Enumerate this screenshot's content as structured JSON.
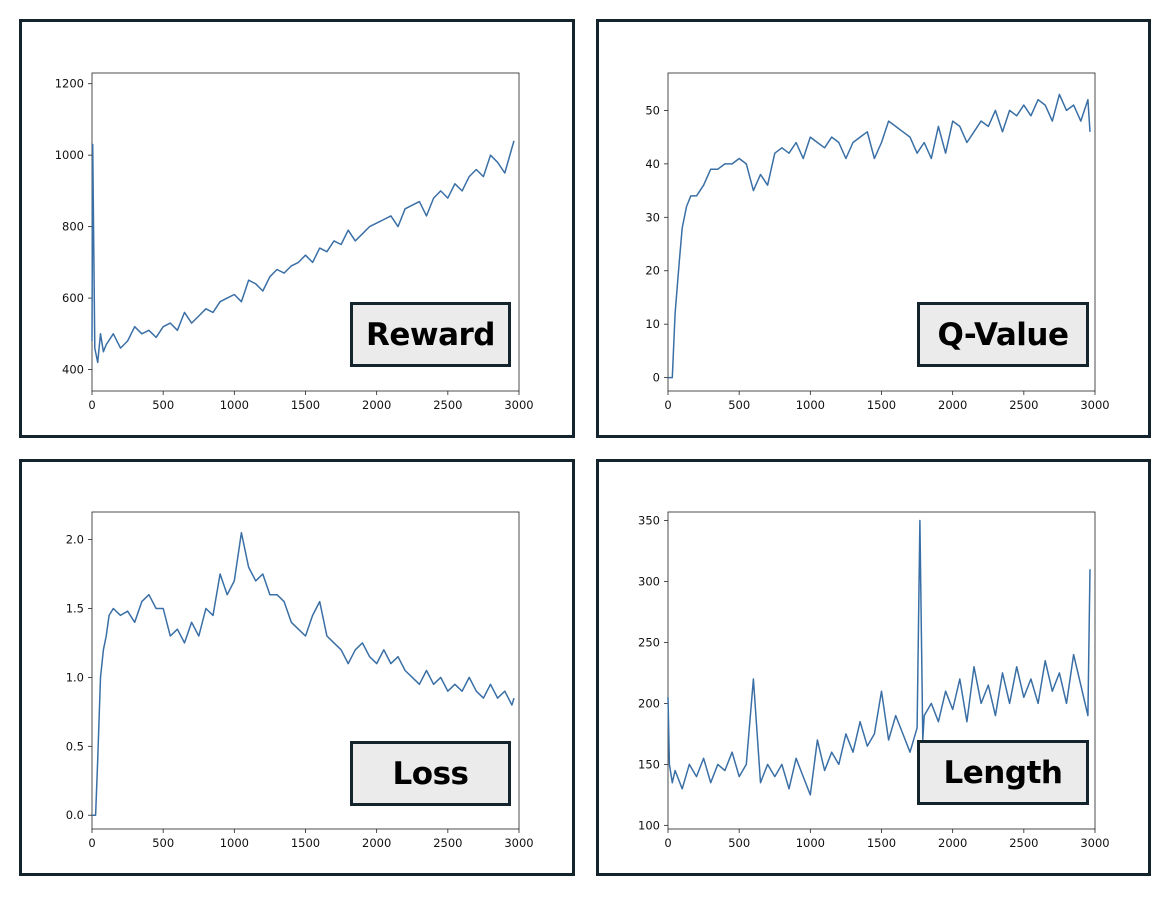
{
  "chart_data": [
    {
      "type": "line",
      "title": "Reward",
      "xlim": [
        0,
        3000
      ],
      "ylim": [
        340,
        1230
      ],
      "xticks": [
        0,
        500,
        1000,
        1500,
        2000,
        2500,
        3000
      ],
      "yticks": [
        400,
        600,
        800,
        1000,
        1200
      ],
      "series": [
        {
          "name": "",
          "color": "#3a6fa6",
          "x": [
            0,
            5,
            20,
            40,
            60,
            80,
            100,
            150,
            200,
            250,
            300,
            350,
            400,
            450,
            500,
            550,
            600,
            650,
            700,
            750,
            800,
            850,
            900,
            950,
            1000,
            1050,
            1100,
            1150,
            1200,
            1250,
            1300,
            1350,
            1400,
            1450,
            1500,
            1550,
            1600,
            1650,
            1700,
            1750,
            1800,
            1850,
            1900,
            1950,
            2000,
            2050,
            2100,
            2150,
            2200,
            2250,
            2300,
            2350,
            2400,
            2450,
            2500,
            2550,
            2600,
            2650,
            2700,
            2750,
            2800,
            2850,
            2900,
            2950,
            2965
          ],
          "y": [
            480,
            1030,
            460,
            420,
            500,
            450,
            470,
            500,
            460,
            480,
            520,
            500,
            510,
            490,
            520,
            530,
            510,
            560,
            530,
            550,
            570,
            560,
            590,
            600,
            610,
            590,
            650,
            640,
            620,
            660,
            680,
            670,
            690,
            700,
            720,
            700,
            740,
            730,
            760,
            750,
            790,
            760,
            780,
            800,
            810,
            820,
            830,
            800,
            850,
            860,
            870,
            830,
            880,
            900,
            880,
            920,
            900,
            940,
            960,
            940,
            1000,
            980,
            950,
            1020,
            1040
          ]
        }
      ]
    },
    {
      "type": "line",
      "title": "Q-Value",
      "xlim": [
        0,
        3000
      ],
      "ylim": [
        -2.5,
        57
      ],
      "xticks": [
        0,
        500,
        1000,
        1500,
        2000,
        2500,
        3000
      ],
      "yticks": [
        0,
        10,
        20,
        30,
        40,
        50
      ],
      "series": [
        {
          "name": "",
          "color": "#3a6fa6",
          "x": [
            0,
            20,
            30,
            50,
            80,
            100,
            130,
            160,
            200,
            250,
            300,
            350,
            400,
            450,
            500,
            550,
            600,
            650,
            700,
            750,
            800,
            850,
            900,
            950,
            1000,
            1050,
            1100,
            1150,
            1200,
            1250,
            1300,
            1350,
            1400,
            1450,
            1500,
            1550,
            1600,
            1650,
            1700,
            1750,
            1800,
            1850,
            1900,
            1950,
            2000,
            2050,
            2100,
            2150,
            2200,
            2250,
            2300,
            2350,
            2400,
            2450,
            2500,
            2550,
            2600,
            2650,
            2700,
            2750,
            2800,
            2850,
            2900,
            2950,
            2965
          ],
          "y": [
            0,
            0,
            0,
            12,
            22,
            28,
            32,
            34,
            34,
            36,
            39,
            39,
            40,
            40,
            41,
            40,
            35,
            38,
            36,
            42,
            43,
            42,
            44,
            41,
            45,
            44,
            43,
            45,
            44,
            41,
            44,
            45,
            46,
            41,
            44,
            48,
            47,
            46,
            45,
            42,
            44,
            41,
            47,
            42,
            48,
            47,
            44,
            46,
            48,
            47,
            50,
            46,
            50,
            49,
            51,
            49,
            52,
            51,
            48,
            53,
            50,
            51,
            48,
            52,
            46
          ]
        }
      ]
    },
    {
      "type": "line",
      "title": "Loss",
      "xlim": [
        0,
        3000
      ],
      "ylim": [
        -0.1,
        2.2
      ],
      "xticks": [
        0,
        500,
        1000,
        1500,
        2000,
        2500,
        3000
      ],
      "yticks": [
        "0.0",
        "0.5",
        "1.0",
        "1.5",
        "2.0"
      ],
      "series": [
        {
          "name": "",
          "color": "#3a6fa6",
          "x": [
            0,
            25,
            40,
            60,
            80,
            100,
            120,
            150,
            200,
            250,
            300,
            350,
            400,
            450,
            500,
            550,
            600,
            650,
            700,
            750,
            800,
            850,
            900,
            950,
            1000,
            1050,
            1100,
            1150,
            1200,
            1250,
            1300,
            1350,
            1400,
            1450,
            1500,
            1550,
            1600,
            1650,
            1700,
            1750,
            1800,
            1850,
            1900,
            1950,
            2000,
            2050,
            2100,
            2150,
            2200,
            2250,
            2300,
            2350,
            2400,
            2450,
            2500,
            2550,
            2600,
            2650,
            2700,
            2750,
            2800,
            2850,
            2900,
            2950,
            2965
          ],
          "y": [
            0,
            0,
            0.4,
            1.0,
            1.2,
            1.3,
            1.45,
            1.5,
            1.45,
            1.48,
            1.4,
            1.55,
            1.6,
            1.5,
            1.5,
            1.3,
            1.35,
            1.25,
            1.4,
            1.3,
            1.5,
            1.45,
            1.75,
            1.6,
            1.7,
            2.05,
            1.8,
            1.7,
            1.75,
            1.6,
            1.6,
            1.55,
            1.4,
            1.35,
            1.3,
            1.45,
            1.55,
            1.3,
            1.25,
            1.2,
            1.1,
            1.2,
            1.25,
            1.15,
            1.1,
            1.2,
            1.1,
            1.15,
            1.05,
            1.0,
            0.95,
            1.05,
            0.95,
            1.0,
            0.9,
            0.95,
            0.9,
            1.0,
            0.9,
            0.85,
            0.95,
            0.85,
            0.9,
            0.8,
            0.85
          ]
        }
      ]
    },
    {
      "type": "line",
      "title": "Length",
      "xlim": [
        0,
        3000
      ],
      "ylim": [
        97,
        357
      ],
      "xticks": [
        0,
        500,
        1000,
        1500,
        2000,
        2500,
        3000
      ],
      "yticks": [
        100,
        150,
        200,
        250,
        300,
        350
      ],
      "series": [
        {
          "name": "",
          "color": "#3a6fa6",
          "x": [
            0,
            10,
            30,
            50,
            100,
            150,
            200,
            250,
            300,
            350,
            400,
            450,
            500,
            550,
            600,
            650,
            700,
            750,
            800,
            850,
            900,
            950,
            1000,
            1050,
            1100,
            1150,
            1200,
            1250,
            1300,
            1350,
            1400,
            1450,
            1500,
            1550,
            1600,
            1650,
            1700,
            1750,
            1770,
            1790,
            1800,
            1850,
            1900,
            1950,
            2000,
            2050,
            2100,
            2150,
            2200,
            2250,
            2300,
            2350,
            2400,
            2450,
            2500,
            2550,
            2600,
            2650,
            2700,
            2750,
            2800,
            2850,
            2900,
            2950,
            2965
          ],
          "y": [
            205,
            150,
            135,
            145,
            130,
            150,
            140,
            155,
            135,
            150,
            145,
            160,
            140,
            150,
            220,
            135,
            150,
            140,
            150,
            130,
            155,
            140,
            125,
            170,
            145,
            160,
            150,
            175,
            160,
            185,
            165,
            175,
            210,
            170,
            190,
            175,
            160,
            180,
            350,
            170,
            190,
            200,
            185,
            210,
            195,
            220,
            185,
            230,
            200,
            215,
            190,
            225,
            200,
            230,
            205,
            220,
            200,
            235,
            210,
            225,
            200,
            240,
            215,
            190,
            310
          ]
        }
      ]
    }
  ]
}
